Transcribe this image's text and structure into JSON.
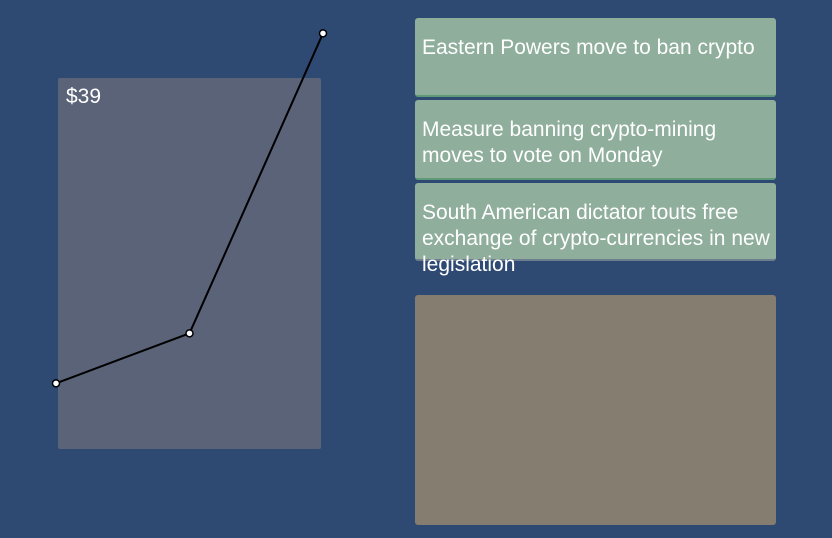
{
  "price_panel": {
    "price_text": "$39"
  },
  "chart_data": {
    "type": "line",
    "title": "",
    "xlabel": "",
    "ylabel": "",
    "x": [
      1,
      2,
      3
    ],
    "series": [
      {
        "values": [
          8,
          14,
          50
        ]
      }
    ],
    "ylim": [
      0,
      54
    ],
    "grid": false,
    "line_color": "#000000",
    "point_color": "#ffffff"
  },
  "news_feed": [
    {
      "headline": "Eastern Powers move to ban crypto"
    },
    {
      "headline": "Measure banning crypto-mining moves to vote on Monday"
    },
    {
      "headline": "South American dictator touts free exchange of crypto-currencies in new legislation"
    }
  ],
  "colors": {
    "background": "#2e4a73",
    "price_panel": "#5a6378",
    "news_card": "#8fae9c",
    "detail_panel": "#857d70"
  }
}
